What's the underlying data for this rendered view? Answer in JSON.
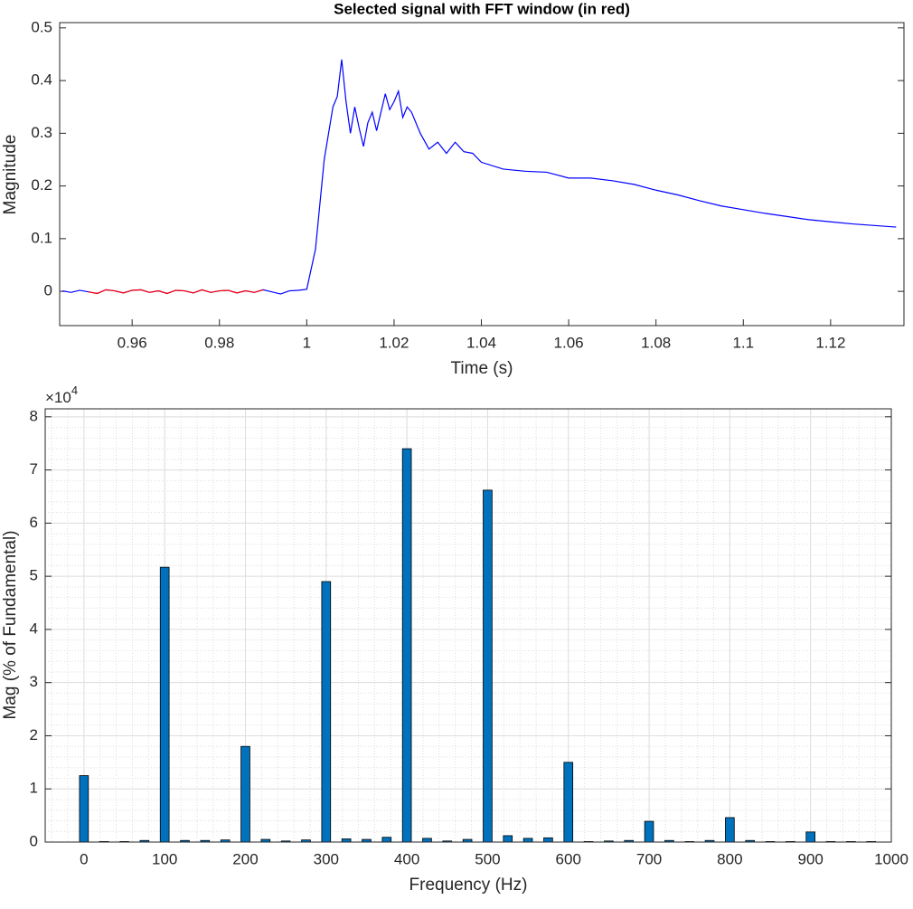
{
  "chart_data": [
    {
      "type": "line",
      "title": "Selected signal with FFT window (in red)",
      "xlabel": "Time (s)",
      "ylabel": "Magnitude",
      "xlim": [
        0.9434,
        1.1368
      ],
      "ylim": [
        -0.065,
        0.51
      ],
      "xticks": [
        0.96,
        0.98,
        1,
        1.02,
        1.04,
        1.06,
        1.08,
        1.1,
        1.12
      ],
      "yticks": [
        0,
        0.1,
        0.2,
        0.3,
        0.4,
        0.5
      ],
      "grid": false,
      "series": [
        {
          "color": "#0000ff",
          "x": [
            0.944,
            0.946,
            0.948,
            0.95,
            0.952,
            0.954,
            0.956,
            0.958,
            0.96,
            0.962,
            0.964,
            0.966,
            0.968,
            0.97,
            0.972,
            0.974,
            0.976,
            0.978,
            0.98,
            0.982,
            0.984,
            0.986,
            0.988,
            0.99,
            0.992,
            0.994,
            0.996,
            0.998,
            1.0,
            1.002,
            1.004,
            1.006,
            1.007,
            1.008,
            1.009,
            1.01,
            1.011,
            1.012,
            1.013,
            1.014,
            1.015,
            1.016,
            1.017,
            1.018,
            1.019,
            1.02,
            1.021,
            1.022,
            1.023,
            1.024,
            1.026,
            1.028,
            1.03,
            1.032,
            1.034,
            1.036,
            1.038,
            1.04,
            1.045,
            1.05,
            1.055,
            1.06,
            1.065,
            1.07,
            1.075,
            1.08,
            1.085,
            1.09,
            1.095,
            1.1,
            1.105,
            1.11,
            1.115,
            1.12,
            1.125,
            1.13,
            1.135
          ],
          "values": [
            0.001,
            -0.002,
            0.002,
            -0.001,
            -0.004,
            0.003,
            0.001,
            -0.003,
            0.002,
            0.003,
            -0.002,
            0.001,
            -0.004,
            0.002,
            0.001,
            -0.003,
            0.003,
            -0.002,
            0.001,
            0.002,
            -0.003,
            0.001,
            -0.002,
            0.003,
            -0.001,
            -0.005,
            0.001,
            0.002,
            0.004,
            0.08,
            0.25,
            0.35,
            0.37,
            0.44,
            0.36,
            0.3,
            0.35,
            0.31,
            0.275,
            0.32,
            0.34,
            0.305,
            0.34,
            0.375,
            0.345,
            0.36,
            0.38,
            0.33,
            0.35,
            0.34,
            0.3,
            0.27,
            0.283,
            0.262,
            0.283,
            0.265,
            0.262,
            0.245,
            0.232,
            0.228,
            0.226,
            0.215,
            0.215,
            0.21,
            0.203,
            0.192,
            0.183,
            0.172,
            0.162,
            0.155,
            0.148,
            0.142,
            0.136,
            0.132,
            0.128,
            0.125,
            0.122
          ]
        },
        {
          "color": "#ff0000",
          "x": [
            0.95,
            0.952,
            0.954,
            0.956,
            0.958,
            0.96,
            0.962,
            0.964,
            0.966,
            0.968,
            0.97,
            0.972,
            0.974,
            0.976,
            0.978,
            0.98,
            0.982,
            0.984,
            0.986,
            0.988,
            0.99
          ],
          "values": [
            -0.001,
            -0.004,
            0.003,
            0.001,
            -0.003,
            0.002,
            0.003,
            -0.002,
            0.001,
            -0.004,
            0.002,
            0.001,
            -0.003,
            0.003,
            -0.002,
            0.001,
            0.002,
            -0.003,
            0.001,
            -0.002,
            0.003
          ]
        }
      ]
    },
    {
      "type": "bar",
      "xlabel": "Frequency (Hz)",
      "ylabel": "Mag (% of Fundamental)",
      "y_multiplier_base": "×10",
      "y_multiplier_exponent": "4",
      "xlim": [
        -48,
        1000
      ],
      "ylim": [
        0,
        8.15
      ],
      "xticks": [
        0,
        100,
        200,
        300,
        400,
        500,
        600,
        700,
        800,
        900,
        1000
      ],
      "yticks": [
        0,
        1,
        2,
        3,
        4,
        5,
        6,
        7,
        8
      ],
      "grid": true,
      "minor_grid": true,
      "color": "#0072bd",
      "x": [
        0,
        25,
        50,
        75,
        100,
        125,
        150,
        175,
        200,
        225,
        250,
        275,
        300,
        325,
        350,
        375,
        400,
        425,
        450,
        475,
        500,
        525,
        550,
        575,
        600,
        625,
        650,
        675,
        700,
        725,
        750,
        775,
        800,
        825,
        850,
        875,
        900,
        925,
        950,
        975
      ],
      "values": [
        1.25,
        0.01,
        0.01,
        0.03,
        5.17,
        0.03,
        0.03,
        0.04,
        1.8,
        0.05,
        0.02,
        0.04,
        4.9,
        0.06,
        0.05,
        0.09,
        7.4,
        0.07,
        0.02,
        0.05,
        6.62,
        0.12,
        0.07,
        0.08,
        1.5,
        0.01,
        0.02,
        0.03,
        0.39,
        0.03,
        0.01,
        0.03,
        0.46,
        0.03,
        0.01,
        0.01,
        0.19,
        0.01,
        0.01,
        0.01
      ]
    }
  ]
}
